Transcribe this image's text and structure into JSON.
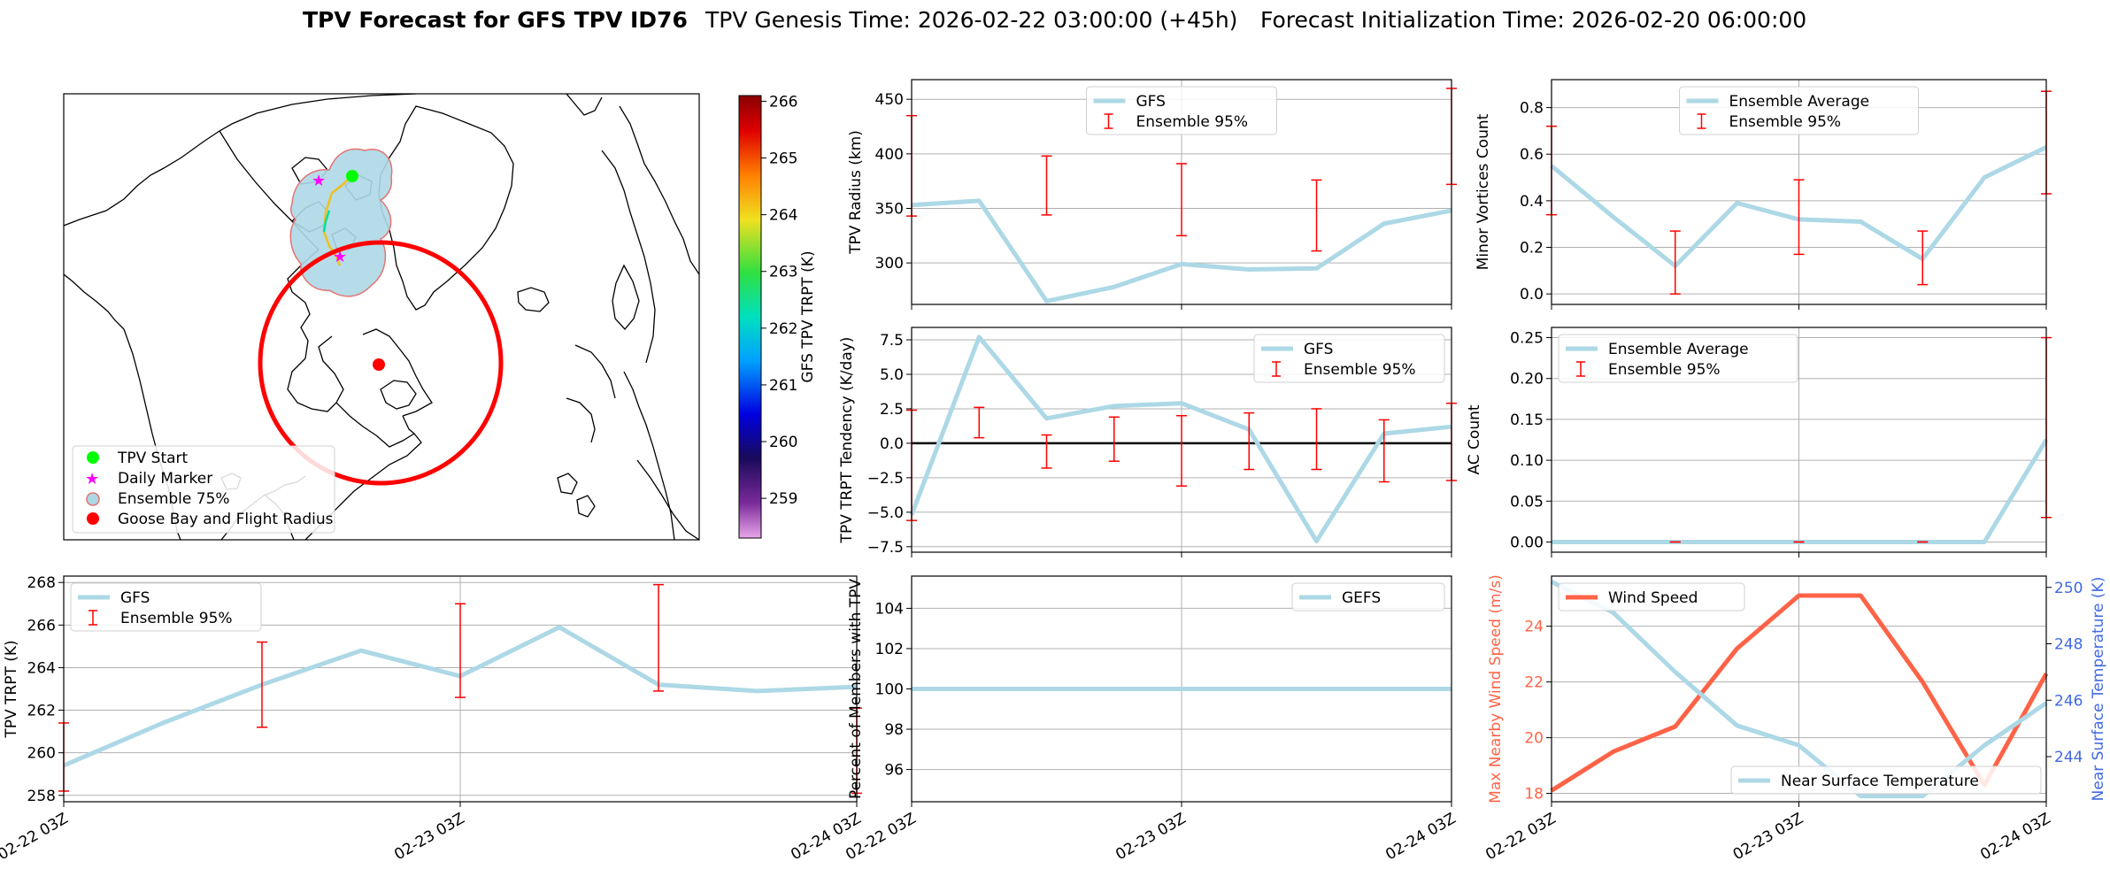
{
  "title": {
    "bold": "TPV Forecast for GFS TPV ID76",
    "genesis": "TPV Genesis Time: 2026-02-22 03:00:00 (+45h)",
    "init": "Forecast Initialization Time: 2026-02-20 06:00:00"
  },
  "colors": {
    "gfs_line": "#add8e6",
    "ensemble_bar": "#ff0000",
    "wind_line": "#ff6347",
    "temp_axis": "#4169e1",
    "grid": "#b0b0b0",
    "goose_bay": "#ff0000",
    "tpv_start": "#00ff00",
    "daily_marker": "#ff00ff",
    "ensemble_fill": "#add8e6"
  },
  "map": {
    "legend": [
      "TPV Start",
      "Daily Marker",
      "Ensemble 75%",
      "Goose Bay and Flight Radius"
    ],
    "colorbar": {
      "label": "GFS TPV TRPT (K)",
      "ticks": [
        "259",
        "260",
        "261",
        "262",
        "263",
        "264",
        "265",
        "266"
      ],
      "range": [
        258.3,
        266.1
      ]
    }
  },
  "time_ticks": [
    "02-22 03Z",
    "02-23 03Z",
    "02-24 03Z"
  ],
  "chart_data": [
    {
      "id": "radius",
      "type": "line",
      "ylabel": "TPV Radius (km)",
      "ylim": [
        262,
        468
      ],
      "yticks": [
        300,
        350,
        400,
        450
      ],
      "grid": true,
      "legend": [
        "GFS",
        "Ensemble 95%"
      ],
      "legend_position": "upper-center",
      "x": [
        0,
        6,
        12,
        18,
        24,
        30,
        36,
        42,
        48
      ],
      "series": [
        {
          "name": "GFS",
          "values": [
            353,
            357,
            265,
            278,
            299,
            294,
            295,
            336,
            348
          ]
        }
      ],
      "errorbars": [
        {
          "x": 0,
          "low": 343,
          "high": 435
        },
        {
          "x": 12,
          "low": 344,
          "high": 398
        },
        {
          "x": 24,
          "low": 325,
          "high": 391
        },
        {
          "x": 36,
          "low": 311,
          "high": 376
        },
        {
          "x": 48,
          "low": 372,
          "high": 460
        }
      ]
    },
    {
      "id": "tendency",
      "type": "line",
      "ylabel": "TPV TRPT Tendency (K/day)",
      "ylim": [
        -7.9,
        8.4
      ],
      "yticks": [
        -7.5,
        -5.0,
        -2.5,
        0.0,
        2.5,
        5.0,
        7.5
      ],
      "ytick_labels": [
        "−7.5",
        "−5.0",
        "−2.5",
        "0.0",
        "2.5",
        "5.0",
        "7.5"
      ],
      "zero_line": true,
      "grid": true,
      "legend": [
        "GFS",
        "Ensemble 95%"
      ],
      "legend_position": "upper-right",
      "x": [
        0,
        6,
        12,
        18,
        24,
        30,
        36,
        42,
        48
      ],
      "series": [
        {
          "name": "GFS",
          "values": [
            -5.2,
            7.7,
            1.8,
            2.7,
            2.9,
            1.0,
            -7.1,
            0.7,
            1.2
          ]
        }
      ],
      "errorbars": [
        {
          "x": 0,
          "low": -5.6,
          "high": 2.4
        },
        {
          "x": 6,
          "low": 0.4,
          "high": 2.6
        },
        {
          "x": 12,
          "low": -1.8,
          "high": 0.6
        },
        {
          "x": 18,
          "low": -1.3,
          "high": 1.9
        },
        {
          "x": 24,
          "low": -3.1,
          "high": 2.0
        },
        {
          "x": 30,
          "low": -1.9,
          "high": 2.2
        },
        {
          "x": 36,
          "low": -1.9,
          "high": 2.5
        },
        {
          "x": 42,
          "low": -2.8,
          "high": 1.7
        },
        {
          "x": 48,
          "low": -2.7,
          "high": 2.9
        }
      ]
    },
    {
      "id": "trpt",
      "type": "line",
      "ylabel": "TPV TRPT (K)",
      "ylim": [
        257.7,
        268.3
      ],
      "yticks": [
        258,
        260,
        262,
        264,
        266,
        268
      ],
      "grid": true,
      "legend": [
        "GFS",
        "Ensemble 95%"
      ],
      "legend_position": "upper-left",
      "x": [
        0,
        6,
        12,
        18,
        24,
        30,
        36,
        42,
        48
      ],
      "series": [
        {
          "name": "GFS",
          "values": [
            259.4,
            261.4,
            263.2,
            264.8,
            263.6,
            265.9,
            263.2,
            262.9,
            263.1
          ]
        }
      ],
      "errorbars": [
        {
          "x": 0,
          "low": 258.2,
          "high": 261.4
        },
        {
          "x": 12,
          "low": 261.2,
          "high": 265.2
        },
        {
          "x": 24,
          "low": 262.6,
          "high": 267.0
        },
        {
          "x": 36,
          "low": 262.9,
          "high": 267.9
        },
        {
          "x": 48,
          "low": 258.1,
          "high": 262.1
        }
      ]
    },
    {
      "id": "percent",
      "type": "line",
      "ylabel": "Percent of Members with TPV",
      "ylim": [
        94.4,
        105.6
      ],
      "yticks": [
        96,
        98,
        100,
        102,
        104
      ],
      "grid": true,
      "legend": [
        "GEFS"
      ],
      "legend_position": "upper-right",
      "x": [
        0,
        6,
        12,
        18,
        24,
        30,
        36,
        42,
        48
      ],
      "series": [
        {
          "name": "GEFS",
          "values": [
            100,
            100,
            100,
            100,
            100,
            100,
            100,
            100,
            100
          ]
        }
      ]
    },
    {
      "id": "minor",
      "type": "line",
      "ylabel": "Minor Vortices Count",
      "ylim": [
        -0.045,
        0.92
      ],
      "yticks": [
        0.0,
        0.2,
        0.4,
        0.6,
        0.8
      ],
      "ytick_labels": [
        "0.0",
        "0.2",
        "0.4",
        "0.6",
        "0.8"
      ],
      "grid": true,
      "legend": [
        "Ensemble Average",
        "Ensemble 95%"
      ],
      "legend_position": "upper-center",
      "x": [
        0,
        6,
        12,
        18,
        24,
        30,
        36,
        42,
        48
      ],
      "series": [
        {
          "name": "Ensemble Average",
          "values": [
            0.55,
            0.33,
            0.12,
            0.39,
            0.32,
            0.31,
            0.15,
            0.5,
            0.63
          ]
        }
      ],
      "errorbars": [
        {
          "x": 0,
          "low": 0.34,
          "high": 0.72
        },
        {
          "x": 12,
          "low": 0.0,
          "high": 0.27
        },
        {
          "x": 24,
          "low": 0.17,
          "high": 0.49
        },
        {
          "x": 36,
          "low": 0.04,
          "high": 0.27
        },
        {
          "x": 48,
          "low": 0.43,
          "high": 0.87
        }
      ]
    },
    {
      "id": "ac",
      "type": "line",
      "ylabel": "AC Count",
      "ylim": [
        -0.0125,
        0.2625
      ],
      "yticks": [
        0.0,
        0.05,
        0.1,
        0.15,
        0.2,
        0.25
      ],
      "ytick_labels": [
        "0.00",
        "0.05",
        "0.10",
        "0.15",
        "0.20",
        "0.25"
      ],
      "grid": true,
      "legend": [
        "Ensemble Average",
        "Ensemble 95%"
      ],
      "legend_position": "upper-left",
      "x": [
        0,
        6,
        12,
        18,
        24,
        30,
        36,
        42,
        48
      ],
      "series": [
        {
          "name": "Ensemble Average",
          "values": [
            0,
            0,
            0,
            0,
            0,
            0,
            0,
            0,
            0.125
          ]
        }
      ],
      "errorbars": [
        {
          "x": 12,
          "low": 0,
          "high": 0
        },
        {
          "x": 24,
          "low": 0,
          "high": 0
        },
        {
          "x": 36,
          "low": 0,
          "high": 0
        },
        {
          "x": 48,
          "low": 0.03,
          "high": 0.25
        }
      ]
    },
    {
      "id": "wind",
      "type": "line",
      "ylabel": "Max Nearby Wind Speed (m/s)",
      "ylabel_right": "Near Surface Temperature (K)",
      "ylim": [
        17.7,
        25.8
      ],
      "yticks": [
        18,
        20,
        22,
        24
      ],
      "ylim_right": [
        242.4,
        250.4
      ],
      "yticks_right": [
        244,
        246,
        248,
        250
      ],
      "grid": true,
      "legend": [
        "Wind Speed"
      ],
      "legend_right": [
        "Near Surface Temperature"
      ],
      "legend_position": "upper-left / lower-right",
      "x": [
        0,
        6,
        12,
        18,
        24,
        30,
        36,
        42,
        48
      ],
      "series": [
        {
          "name": "Wind Speed",
          "axis": "left",
          "values": [
            18.1,
            19.5,
            20.4,
            23.2,
            25.1,
            25.1,
            22.0,
            18.3,
            22.3
          ]
        },
        {
          "name": "Near Surface Temperature",
          "axis": "right",
          "values": [
            250.2,
            249.1,
            247.0,
            245.1,
            244.4,
            242.6,
            242.6,
            244.4,
            245.9
          ]
        }
      ]
    }
  ]
}
